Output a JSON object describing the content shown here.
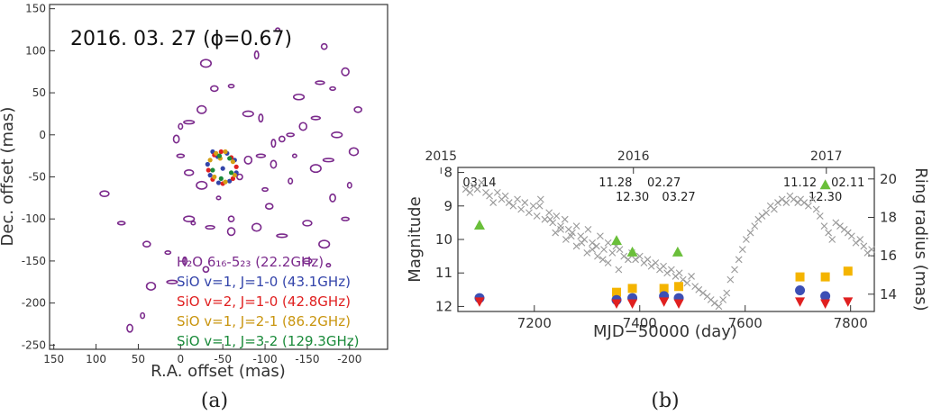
{
  "chart_data": [
    {
      "type": "scatter",
      "panel_label": "(a)",
      "title": "2016. 03. 27 (ϕ=0.67)",
      "xlabel": "R.A. offset (mas)",
      "ylabel": "Dec. offset (mas)",
      "x_ticks": [
        "150",
        "100",
        "50",
        "0",
        "-50",
        "-100",
        "-150",
        "-200"
      ],
      "y_ticks": [
        "150",
        "100",
        "50",
        "0",
        "-50",
        "-100",
        "-150",
        "-200",
        "-250"
      ],
      "xlim": [
        155,
        -245
      ],
      "ylim": [
        -255,
        155
      ],
      "x_inverted": true,
      "grid": false,
      "legend_position": "bottom-right",
      "series": [
        {
          "name": "H₂O 6₁₆-5₂₃ (22.2GHz)",
          "color": "#7b2a8c",
          "points": [
            [
              -115,
              125
            ],
            [
              -170,
              105
            ],
            [
              -195,
              75
            ],
            [
              -165,
              62
            ],
            [
              -140,
              45
            ],
            [
              -110,
              -10
            ],
            [
              -180,
              55
            ],
            [
              -210,
              30
            ],
            [
              -205,
              -20
            ],
            [
              -175,
              -30
            ],
            [
              -200,
              -60
            ],
            [
              -180,
              -75
            ],
            [
              -195,
              -100
            ],
            [
              -150,
              -105
            ],
            [
              -160,
              -40
            ],
            [
              -135,
              -25
            ],
            [
              -120,
              -5
            ],
            [
              -145,
              10
            ],
            [
              -160,
              20
            ],
            [
              -185,
              0
            ],
            [
              -90,
              95
            ],
            [
              -60,
              58
            ],
            [
              -40,
              55
            ],
            [
              -25,
              30
            ],
            [
              -10,
              15
            ],
            [
              0,
              10
            ],
            [
              5,
              -5
            ],
            [
              0,
              -25
            ],
            [
              -10,
              -45
            ],
            [
              -25,
              -60
            ],
            [
              -45,
              -75
            ],
            [
              -70,
              -50
            ],
            [
              -80,
              -30
            ],
            [
              -95,
              -25
            ],
            [
              -80,
              25
            ],
            [
              -95,
              20
            ],
            [
              -100,
              -65
            ],
            [
              -105,
              -85
            ],
            [
              -90,
              -110
            ],
            [
              -120,
              -120
            ],
            [
              -130,
              -55
            ],
            [
              -110,
              -35
            ],
            [
              -130,
              0
            ],
            [
              -150,
              -150
            ],
            [
              -170,
              -130
            ],
            [
              -175,
              -155
            ],
            [
              -60,
              -100
            ],
            [
              -60,
              -115
            ],
            [
              -35,
              -110
            ],
            [
              -10,
              -100
            ],
            [
              -5,
              -150
            ],
            [
              15,
              -140
            ],
            [
              40,
              -130
            ],
            [
              35,
              -180
            ],
            [
              10,
              -175
            ],
            [
              45,
              -215
            ],
            [
              60,
              -230
            ],
            [
              70,
              -105
            ],
            [
              90,
              -70
            ],
            [
              -30,
              85
            ],
            [
              -15,
              -105
            ],
            [
              -30,
              -160
            ]
          ]
        },
        {
          "name": "SiO v=1, J=1-0 (43.1GHz)",
          "color": "#3344aa",
          "points": [
            [
              -38,
              -20
            ],
            [
              -44,
              -26
            ],
            [
              -55,
              -22
            ],
            [
              -64,
              -30
            ],
            [
              -66,
              -45
            ],
            [
              -58,
              -55
            ],
            [
              -45,
              -57
            ],
            [
              -35,
              -48
            ],
            [
              -32,
              -35
            ],
            [
              -50,
              -40
            ]
          ]
        },
        {
          "name": "SiO v=2, J=1-0 (42.8GHz)",
          "color": "#e02020",
          "points": [
            [
              -40,
              -24
            ],
            [
              -48,
              -20
            ],
            [
              -60,
              -27
            ],
            [
              -66,
              -38
            ],
            [
              -62,
              -52
            ],
            [
              -50,
              -58
            ],
            [
              -38,
              -53
            ],
            [
              -33,
              -42
            ]
          ]
        },
        {
          "name": "SiO v=1, J=2-1 (86.2GHz)",
          "color": "#d4a017",
          "points": [
            [
              -42,
              -22
            ],
            [
              -53,
              -20
            ],
            [
              -62,
              -32
            ],
            [
              -64,
              -48
            ],
            [
              -53,
              -56
            ],
            [
              -40,
              -50
            ],
            [
              -35,
              -30
            ],
            [
              -47,
              -28
            ]
          ]
        },
        {
          "name": "SiO v=1, J=3-2 (129.3GHz)",
          "color": "#1a8a3a",
          "points": [
            [
              -46,
              -25
            ],
            [
              -58,
              -28
            ],
            [
              -60,
              -45
            ],
            [
              -48,
              -52
            ],
            [
              -38,
              -42
            ]
          ]
        }
      ]
    },
    {
      "type": "scatter",
      "panel_label": "(b)",
      "xlabel": "MJD−50000 (day)",
      "ylabel": "Magnitude",
      "y2label": "Ring radius (mas)",
      "x_ticks": [
        "7200",
        "7400",
        "7600",
        "7800"
      ],
      "y_ticks": [
        "8",
        "9",
        "10",
        "11",
        "12"
      ],
      "y2_ticks": [
        "14",
        "16",
        "18",
        "20"
      ],
      "top_ticks": [
        "2015",
        "2016",
        "2017"
      ],
      "xlim": [
        7055,
        7845
      ],
      "ylim": [
        12.15,
        7.85
      ],
      "y_inverted": true,
      "y2lim": [
        13.1,
        20.6
      ],
      "grid": false,
      "epoch_labels": [
        {
          "text": "03.14",
          "x": 7096,
          "row": 1
        },
        {
          "text": "11.28",
          "x": 7354,
          "row": 1
        },
        {
          "text": "12.30",
          "x": 7386,
          "row": 2
        },
        {
          "text": "02.27",
          "x": 7446,
          "row": 1
        },
        {
          "text": "03.27",
          "x": 7474,
          "row": 2
        },
        {
          "text": "11.12",
          "x": 7704,
          "row": 1
        },
        {
          "text": "12.30",
          "x": 7752,
          "row": 2
        },
        {
          "text": "02.11",
          "x": 7795,
          "row": 1
        }
      ],
      "light_curve": {
        "marker": "x",
        "color": "#999999",
        "x": [
          7070,
          7078,
          7085,
          7092,
          7100,
          7108,
          7115,
          7122,
          7130,
          7138,
          7145,
          7152,
          7160,
          7168,
          7175,
          7182,
          7190,
          7198,
          7205,
          7212,
          7220,
          7228,
          7235,
          7242,
          7250,
          7258,
          7265,
          7272,
          7280,
          7288,
          7295,
          7302,
          7310,
          7318,
          7325,
          7332,
          7340,
          7348,
          7355,
          7362,
          7370,
          7378,
          7385,
          7392,
          7400,
          7408,
          7415,
          7422,
          7430,
          7438,
          7445,
          7452,
          7460,
          7468,
          7475,
          7482,
          7490,
          7498,
          7505,
          7512,
          7520,
          7528,
          7535,
          7542,
          7550,
          7558,
          7565,
          7572,
          7580,
          7588,
          7595,
          7602,
          7610,
          7618,
          7625,
          7632,
          7640,
          7648,
          7655,
          7662,
          7670,
          7678,
          7685,
          7692,
          7700,
          7705,
          7712,
          7720,
          7728,
          7735,
          7742,
          7750,
          7758,
          7765,
          7772,
          7780,
          7788,
          7795,
          7802,
          7810,
          7818,
          7825,
          7832,
          7840,
          7210,
          7230,
          7250,
          7270,
          7290,
          7310,
          7330,
          7240,
          7260,
          7280,
          7300,
          7320,
          7340,
          7360
        ],
        "y": [
          8.5,
          8.6,
          8.4,
          8.5,
          8.3,
          8.6,
          8.7,
          8.9,
          8.6,
          8.8,
          8.7,
          8.9,
          9.0,
          8.8,
          9.1,
          8.9,
          9.2,
          9.0,
          9.3,
          8.8,
          9.4,
          9.2,
          9.5,
          9.3,
          9.6,
          9.4,
          9.7,
          9.8,
          9.6,
          9.9,
          10.0,
          9.7,
          10.1,
          10.2,
          9.9,
          10.3,
          10.1,
          10.4,
          10.2,
          10.3,
          10.5,
          10.6,
          10.4,
          10.6,
          10.5,
          10.7,
          10.6,
          10.8,
          10.7,
          10.9,
          10.8,
          11.0,
          10.9,
          11.1,
          11.0,
          11.2,
          11.3,
          11.1,
          11.4,
          11.5,
          11.6,
          11.7,
          11.8,
          11.9,
          12.0,
          11.8,
          11.6,
          11.2,
          10.9,
          10.6,
          10.3,
          10.0,
          9.8,
          9.6,
          9.4,
          9.3,
          9.2,
          9.0,
          9.1,
          8.9,
          8.8,
          8.9,
          8.7,
          8.8,
          8.9,
          8.8,
          8.9,
          9.0,
          8.8,
          9.1,
          9.3,
          9.6,
          9.8,
          10.0,
          9.5,
          9.6,
          9.7,
          9.8,
          9.9,
          10.1,
          10.0,
          10.2,
          10.4,
          10.3,
          9.0,
          9.4,
          9.7,
          9.9,
          10.1,
          10.3,
          10.6,
          9.8,
          10.0,
          10.2,
          10.4,
          10.5,
          10.7,
          10.9
        ]
      },
      "series": [
        {
          "name": "H2O",
          "marker": "triangle-up",
          "color": "#6abf3a",
          "x": [
            7096,
            7356,
            7386,
            7472,
            7752
          ],
          "y": [
            17.6,
            16.8,
            16.2,
            16.2,
            19.7
          ]
        },
        {
          "name": "SiO v=1, J=2-1",
          "marker": "square",
          "color": "#f4b400",
          "x": [
            7356,
            7386,
            7446,
            7474,
            7704,
            7752,
            7795
          ],
          "y": [
            14.1,
            14.3,
            14.3,
            14.4,
            14.9,
            14.9,
            15.2
          ]
        },
        {
          "name": "SiO v=1, J=1-0",
          "marker": "circle",
          "color": "#3c4fb5",
          "x": [
            7096,
            7356,
            7386,
            7446,
            7474,
            7704,
            7752
          ],
          "y": [
            13.8,
            13.7,
            13.8,
            13.9,
            13.8,
            14.2,
            13.9
          ]
        },
        {
          "name": "SiO v=2, J=1-0",
          "marker": "triangle-down",
          "color": "#e02020",
          "x": [
            7096,
            7356,
            7386,
            7446,
            7474,
            7704,
            7752,
            7795
          ],
          "y": [
            13.6,
            13.5,
            13.5,
            13.6,
            13.5,
            13.6,
            13.5,
            13.6
          ]
        }
      ]
    }
  ]
}
